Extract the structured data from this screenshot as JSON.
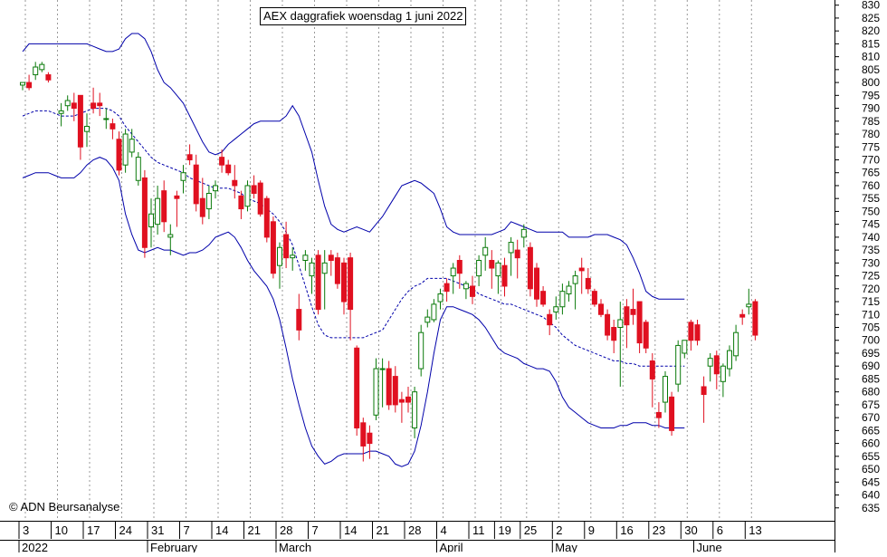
{
  "chart_data": {
    "type": "candlestick",
    "title": "AEX daggrafiek woensdag 1 juni 2022",
    "watermark": "© ADN Beursanalyse",
    "ylim": [
      630,
      832
    ],
    "y_ticks": [
      635,
      640,
      645,
      650,
      655,
      660,
      665,
      670,
      675,
      680,
      685,
      690,
      695,
      700,
      705,
      710,
      715,
      720,
      725,
      730,
      735,
      740,
      745,
      750,
      755,
      760,
      765,
      770,
      775,
      780,
      785,
      790,
      795,
      800,
      805,
      810,
      815,
      820,
      825,
      830
    ],
    "x_ticks": [
      {
        "label": "3",
        "d": 0
      },
      {
        "label": "10",
        "d": 5
      },
      {
        "label": "17",
        "d": 10
      },
      {
        "label": "24",
        "d": 15
      },
      {
        "label": "31",
        "d": 20
      },
      {
        "label": "7",
        "d": 25
      },
      {
        "label": "14",
        "d": 30
      },
      {
        "label": "21",
        "d": 35
      },
      {
        "label": "28",
        "d": 40
      },
      {
        "label": "7",
        "d": 45
      },
      {
        "label": "14",
        "d": 50
      },
      {
        "label": "21",
        "d": 55
      },
      {
        "label": "28",
        "d": 60
      },
      {
        "label": "4",
        "d": 65
      },
      {
        "label": "11",
        "d": 70
      },
      {
        "label": "19",
        "d": 74
      },
      {
        "label": "25",
        "d": 78
      },
      {
        "label": "2",
        "d": 83
      },
      {
        "label": "9",
        "d": 88
      },
      {
        "label": "16",
        "d": 93
      },
      {
        "label": "23",
        "d": 98
      },
      {
        "label": "30",
        "d": 103
      },
      {
        "label": "6",
        "d": 108
      },
      {
        "label": "13",
        "d": 113
      }
    ],
    "months": [
      {
        "label": "2022",
        "d": 0
      },
      {
        "label": "February",
        "d": 20
      },
      {
        "label": "March",
        "d": 40
      },
      {
        "label": "April",
        "d": 65
      },
      {
        "label": "May",
        "d": 83
      },
      {
        "label": "June",
        "d": 105
      }
    ],
    "bands_upper": [
      812,
      815,
      815,
      815,
      815,
      815,
      815,
      815,
      815,
      815,
      815,
      814,
      813,
      812,
      812,
      813,
      817,
      819,
      819,
      817,
      812,
      805,
      800,
      798,
      795,
      792,
      787,
      782,
      777,
      773,
      772,
      773,
      776,
      778,
      780,
      782,
      784,
      785,
      785,
      785,
      785,
      787,
      791,
      787,
      780,
      773,
      762,
      752,
      745,
      743,
      742,
      743,
      744,
      743,
      742,
      745,
      748,
      752,
      756,
      760,
      761,
      762,
      761,
      759,
      757,
      751,
      744,
      742,
      741,
      741,
      741,
      741,
      741,
      741,
      742,
      743,
      746,
      745,
      744,
      743,
      742,
      742,
      742,
      742,
      742,
      740,
      740,
      740,
      740,
      741,
      741,
      741,
      740,
      739,
      737,
      732,
      726,
      719,
      717,
      716,
      716,
      716,
      716,
      716
    ],
    "bands_middle": [
      787,
      788,
      789,
      789,
      789,
      788,
      787,
      787,
      787,
      788,
      789,
      790,
      790,
      790,
      789,
      787,
      783,
      780,
      777,
      774,
      771,
      769,
      768,
      767,
      766,
      765,
      763,
      762,
      761,
      760,
      759,
      759,
      759,
      758,
      757,
      755,
      754,
      753,
      751,
      749,
      746,
      742,
      737,
      729,
      721,
      713,
      706,
      702,
      701,
      701,
      701,
      701,
      701,
      701,
      702,
      703,
      704,
      708,
      712,
      716,
      719,
      721,
      722,
      724,
      724,
      724,
      724,
      723,
      722,
      721,
      720,
      718,
      717,
      716,
      715,
      714,
      714,
      713,
      712,
      711,
      710,
      709,
      707,
      705,
      702,
      700,
      698,
      697,
      696,
      695,
      694,
      693,
      692,
      692,
      691,
      691,
      690,
      690,
      690,
      690,
      690,
      690,
      690,
      690
    ],
    "bands_lower": [
      763,
      764,
      765,
      765,
      765,
      764,
      763,
      763,
      763,
      765,
      768,
      770,
      771,
      770,
      767,
      762,
      749,
      741,
      735,
      734,
      735,
      736,
      735,
      735,
      734,
      733,
      734,
      734,
      735,
      737,
      740,
      741,
      742,
      740,
      736,
      731,
      727,
      724,
      721,
      716,
      708,
      697,
      685,
      675,
      666,
      659,
      655,
      652,
      653,
      655,
      656,
      656,
      656,
      656,
      657,
      657,
      656,
      655,
      652,
      651,
      652,
      657,
      667,
      680,
      695,
      708,
      713,
      713,
      712,
      711,
      710,
      708,
      705,
      701,
      697,
      695,
      694,
      693,
      691,
      690,
      689,
      689,
      688,
      684,
      678,
      674,
      672,
      670,
      668,
      667,
      666,
      666,
      666,
      667,
      667,
      668,
      668,
      668,
      667,
      667,
      666,
      666,
      666,
      666
    ],
    "candles": [
      {
        "d": 0,
        "o": 799,
        "h": 800,
        "l": 797,
        "c": 800
      },
      {
        "d": 1,
        "o": 800,
        "h": 803,
        "l": 797,
        "c": 798
      },
      {
        "d": 2,
        "o": 803,
        "h": 808,
        "l": 801,
        "c": 806
      },
      {
        "d": 3,
        "o": 805,
        "h": 808,
        "l": 804,
        "c": 807
      },
      {
        "d": 4,
        "o": 803,
        "h": 804,
        "l": 800,
        "c": 801
      },
      {
        "d": 6,
        "o": 788,
        "h": 792,
        "l": 783,
        "c": 789
      },
      {
        "d": 7,
        "o": 791,
        "h": 795,
        "l": 789,
        "c": 793
      },
      {
        "d": 8,
        "o": 792,
        "h": 796,
        "l": 785,
        "c": 790
      },
      {
        "d": 9,
        "o": 795,
        "h": 795,
        "l": 770,
        "c": 775
      },
      {
        "d": 10,
        "o": 781,
        "h": 788,
        "l": 775,
        "c": 783
      },
      {
        "d": 11,
        "o": 792,
        "h": 798,
        "l": 788,
        "c": 790
      },
      {
        "d": 12,
        "o": 792,
        "h": 796,
        "l": 787,
        "c": 791
      },
      {
        "d": 13,
        "o": 786,
        "h": 790,
        "l": 782,
        "c": 786
      },
      {
        "d": 14,
        "o": 784,
        "h": 786,
        "l": 778,
        "c": 782
      },
      {
        "d": 15,
        "o": 778,
        "h": 781,
        "l": 764,
        "c": 766
      },
      {
        "d": 16,
        "o": 768,
        "h": 782,
        "l": 765,
        "c": 780
      },
      {
        "d": 17,
        "o": 773,
        "h": 782,
        "l": 771,
        "c": 778
      },
      {
        "d": 18,
        "o": 762,
        "h": 773,
        "l": 760,
        "c": 771
      },
      {
        "d": 19,
        "o": 763,
        "h": 766,
        "l": 732,
        "c": 736
      },
      {
        "d": 20,
        "o": 744,
        "h": 755,
        "l": 736,
        "c": 749
      },
      {
        "d": 21,
        "o": 745,
        "h": 760,
        "l": 741,
        "c": 755
      },
      {
        "d": 22,
        "o": 758,
        "h": 762,
        "l": 742,
        "c": 746
      },
      {
        "d": 23,
        "o": 740,
        "h": 745,
        "l": 733,
        "c": 741
      },
      {
        "d": 24,
        "o": 756,
        "h": 758,
        "l": 744,
        "c": 755
      },
      {
        "d": 25,
        "o": 762,
        "h": 768,
        "l": 757,
        "c": 765
      },
      {
        "d": 26,
        "o": 772,
        "h": 776,
        "l": 768,
        "c": 770
      },
      {
        "d": 27,
        "o": 768,
        "h": 772,
        "l": 750,
        "c": 753
      },
      {
        "d": 28,
        "o": 755,
        "h": 763,
        "l": 745,
        "c": 748
      },
      {
        "d": 29,
        "o": 751,
        "h": 760,
        "l": 747,
        "c": 757
      },
      {
        "d": 30,
        "o": 758,
        "h": 762,
        "l": 755,
        "c": 760
      },
      {
        "d": 31,
        "o": 771,
        "h": 774,
        "l": 765,
        "c": 768
      },
      {
        "d": 32,
        "o": 768,
        "h": 770,
        "l": 764,
        "c": 765
      },
      {
        "d": 33,
        "o": 762,
        "h": 768,
        "l": 755,
        "c": 760
      },
      {
        "d": 34,
        "o": 756,
        "h": 758,
        "l": 747,
        "c": 751
      },
      {
        "d": 35,
        "o": 752,
        "h": 762,
        "l": 750,
        "c": 760
      },
      {
        "d": 36,
        "o": 760,
        "h": 764,
        "l": 755,
        "c": 757
      },
      {
        "d": 37,
        "o": 761,
        "h": 762,
        "l": 748,
        "c": 749
      },
      {
        "d": 38,
        "o": 755,
        "h": 756,
        "l": 738,
        "c": 740
      },
      {
        "d": 39,
        "o": 746,
        "h": 748,
        "l": 724,
        "c": 726
      },
      {
        "d": 40,
        "o": 729,
        "h": 738,
        "l": 720,
        "c": 736
      },
      {
        "d": 41,
        "o": 741,
        "h": 746,
        "l": 728,
        "c": 732
      },
      {
        "d": 42,
        "o": 732,
        "h": 736,
        "l": 727,
        "c": 733
      },
      {
        "d": 43,
        "o": 712,
        "h": 718,
        "l": 700,
        "c": 704
      },
      {
        "d": 44,
        "o": 731,
        "h": 735,
        "l": 727,
        "c": 733
      },
      {
        "d": 45,
        "o": 725,
        "h": 732,
        "l": 718,
        "c": 730
      },
      {
        "d": 46,
        "o": 733,
        "h": 735,
        "l": 710,
        "c": 712
      },
      {
        "d": 47,
        "o": 726,
        "h": 735,
        "l": 712,
        "c": 730
      },
      {
        "d": 48,
        "o": 733,
        "h": 735,
        "l": 725,
        "c": 731
      },
      {
        "d": 49,
        "o": 732,
        "h": 734,
        "l": 720,
        "c": 722
      },
      {
        "d": 50,
        "o": 730,
        "h": 732,
        "l": 710,
        "c": 715
      },
      {
        "d": 51,
        "o": 732,
        "h": 734,
        "l": 700,
        "c": 712
      },
      {
        "d": 52,
        "o": 697,
        "h": 698,
        "l": 663,
        "c": 666
      },
      {
        "d": 53,
        "o": 668,
        "h": 670,
        "l": 653,
        "c": 659
      },
      {
        "d": 54,
        "o": 664,
        "h": 667,
        "l": 654,
        "c": 660
      },
      {
        "d": 55,
        "o": 671,
        "h": 693,
        "l": 669,
        "c": 689
      },
      {
        "d": 56,
        "o": 689,
        "h": 693,
        "l": 674,
        "c": 689
      },
      {
        "d": 57,
        "o": 689,
        "h": 692,
        "l": 673,
        "c": 675
      },
      {
        "d": 58,
        "o": 686,
        "h": 690,
        "l": 672,
        "c": 675
      },
      {
        "d": 59,
        "o": 677,
        "h": 680,
        "l": 668,
        "c": 676
      },
      {
        "d": 60,
        "o": 678,
        "h": 682,
        "l": 672,
        "c": 676
      },
      {
        "d": 61,
        "o": 666,
        "h": 682,
        "l": 662,
        "c": 680
      },
      {
        "d": 62,
        "o": 689,
        "h": 706,
        "l": 686,
        "c": 703
      },
      {
        "d": 63,
        "o": 707,
        "h": 712,
        "l": 705,
        "c": 709
      },
      {
        "d": 64,
        "o": 708,
        "h": 716,
        "l": 707,
        "c": 714
      },
      {
        "d": 65,
        "o": 715,
        "h": 720,
        "l": 712,
        "c": 718
      },
      {
        "d": 66,
        "o": 722,
        "h": 724,
        "l": 715,
        "c": 719
      },
      {
        "d": 67,
        "o": 725,
        "h": 730,
        "l": 718,
        "c": 728
      },
      {
        "d": 68,
        "o": 731,
        "h": 733,
        "l": 720,
        "c": 726
      },
      {
        "d": 69,
        "o": 720,
        "h": 723,
        "l": 716,
        "c": 722
      },
      {
        "d": 70,
        "o": 721,
        "h": 725,
        "l": 714,
        "c": 717
      },
      {
        "d": 71,
        "o": 725,
        "h": 733,
        "l": 721,
        "c": 731
      },
      {
        "d": 72,
        "o": 733,
        "h": 740,
        "l": 727,
        "c": 736
      },
      {
        "d": 73,
        "o": 731,
        "h": 735,
        "l": 720,
        "c": 728
      },
      {
        "d": 74,
        "o": 725,
        "h": 731,
        "l": 718,
        "c": 730
      },
      {
        "d": 75,
        "o": 729,
        "h": 732,
        "l": 717,
        "c": 721
      },
      {
        "d": 76,
        "o": 734,
        "h": 740,
        "l": 725,
        "c": 738
      },
      {
        "d": 77,
        "o": 735,
        "h": 739,
        "l": 724,
        "c": 732
      },
      {
        "d": 78,
        "o": 740,
        "h": 745,
        "l": 736,
        "c": 743
      },
      {
        "d": 79,
        "o": 736,
        "h": 738,
        "l": 717,
        "c": 720
      },
      {
        "d": 80,
        "o": 728,
        "h": 730,
        "l": 713,
        "c": 716
      },
      {
        "d": 81,
        "o": 719,
        "h": 721,
        "l": 713,
        "c": 714
      },
      {
        "d": 82,
        "o": 710,
        "h": 712,
        "l": 702,
        "c": 706
      },
      {
        "d": 83,
        "o": 711,
        "h": 717,
        "l": 708,
        "c": 713
      },
      {
        "d": 84,
        "o": 713,
        "h": 722,
        "l": 710,
        "c": 719
      },
      {
        "d": 85,
        "o": 718,
        "h": 723,
        "l": 715,
        "c": 721
      },
      {
        "d": 86,
        "o": 722,
        "h": 727,
        "l": 712,
        "c": 725
      },
      {
        "d": 87,
        "o": 728,
        "h": 732,
        "l": 718,
        "c": 727
      },
      {
        "d": 88,
        "o": 724,
        "h": 728,
        "l": 718,
        "c": 720
      },
      {
        "d": 89,
        "o": 719,
        "h": 720,
        "l": 713,
        "c": 714
      },
      {
        "d": 90,
        "o": 714,
        "h": 716,
        "l": 709,
        "c": 710
      },
      {
        "d": 91,
        "o": 710,
        "h": 712,
        "l": 700,
        "c": 702
      },
      {
        "d": 92,
        "o": 705,
        "h": 708,
        "l": 695,
        "c": 700
      },
      {
        "d": 93,
        "o": 705,
        "h": 715,
        "l": 682,
        "c": 708
      },
      {
        "d": 94,
        "o": 713,
        "h": 716,
        "l": 697,
        "c": 706
      },
      {
        "d": 95,
        "o": 712,
        "h": 720,
        "l": 706,
        "c": 710
      },
      {
        "d": 96,
        "o": 715,
        "h": 715,
        "l": 695,
        "c": 699
      },
      {
        "d": 97,
        "o": 707,
        "h": 708,
        "l": 695,
        "c": 697
      },
      {
        "d": 98,
        "o": 692,
        "h": 695,
        "l": 674,
        "c": 685
      },
      {
        "d": 99,
        "o": 672,
        "h": 676,
        "l": 666,
        "c": 670
      },
      {
        "d": 100,
        "o": 676,
        "h": 688,
        "l": 672,
        "c": 686
      },
      {
        "d": 101,
        "o": 678,
        "h": 680,
        "l": 663,
        "c": 665
      },
      {
        "d": 102,
        "o": 683,
        "h": 700,
        "l": 680,
        "c": 698
      },
      {
        "d": 103,
        "o": 695,
        "h": 700,
        "l": 693,
        "c": 700
      },
      {
        "d": 104,
        "o": 707,
        "h": 708,
        "l": 696,
        "c": 700
      },
      {
        "d": 105,
        "o": 706,
        "h": 708,
        "l": 698,
        "c": 700
      },
      {
        "d": 106,
        "o": 682,
        "h": 686,
        "l": 668,
        "c": 679
      },
      {
        "d": 107,
        "o": 690,
        "h": 695,
        "l": 684,
        "c": 693
      },
      {
        "d": 108,
        "o": 694,
        "h": 696,
        "l": 681,
        "c": 687
      },
      {
        "d": 109,
        "o": 684,
        "h": 691,
        "l": 678,
        "c": 690
      },
      {
        "d": 110,
        "o": 689,
        "h": 698,
        "l": 686,
        "c": 696
      },
      {
        "d": 111,
        "o": 694,
        "h": 706,
        "l": 692,
        "c": 703
      },
      {
        "d": 112,
        "o": 710,
        "h": 712,
        "l": 706,
        "c": 709
      },
      {
        "d": 113,
        "o": 713,
        "h": 720,
        "l": 710,
        "c": 714
      },
      {
        "d": 114,
        "o": 715,
        "h": 716,
        "l": 700,
        "c": 702
      }
    ],
    "colors": {
      "up": "#0a7a0a",
      "down": "#e01020",
      "band": "#0000aa",
      "grid": "#999999"
    }
  }
}
